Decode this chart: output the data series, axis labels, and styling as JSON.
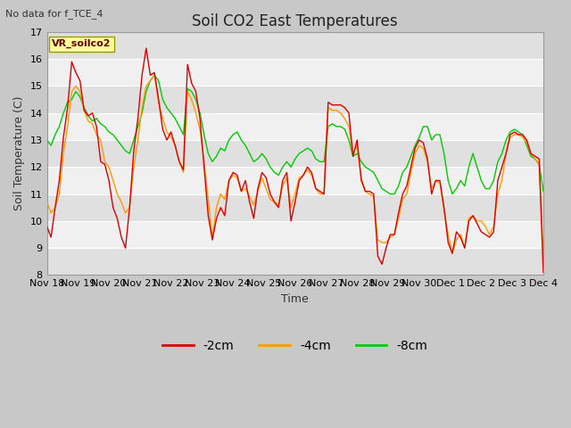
{
  "title": "Soil CO2 East Temperatures",
  "subtitle": "No data for f_TCE_4",
  "ylabel": "Soil Temperature (C)",
  "xlabel": "Time",
  "ylim": [
    8.0,
    17.0
  ],
  "yticks": [
    8.0,
    9.0,
    10.0,
    11.0,
    12.0,
    13.0,
    14.0,
    15.0,
    16.0,
    17.0
  ],
  "fig_bg": "#c8c8c8",
  "plot_bg_light": "#f0f0f0",
  "plot_bg_dark": "#e0e0e0",
  "line_colors": {
    "m2cm": "#dd0000",
    "m4cm": "#ff9900",
    "m8cm": "#00cc00"
  },
  "legend_labels": [
    "-2cm",
    "-4cm",
    "-8cm"
  ],
  "vr_label": "VR_soilco2",
  "vr_box_color": "#ffff99",
  "vr_box_edge": "#999900",
  "n_days": 16,
  "title_fontsize": 12,
  "label_fontsize": 9,
  "tick_fontsize": 8,
  "line_width": 1.0,
  "data_2cm": [
    9.8,
    9.4,
    10.5,
    11.5,
    13.1,
    14.2,
    15.9,
    15.5,
    15.2,
    14.1,
    13.9,
    14.0,
    13.5,
    12.2,
    12.1,
    11.5,
    10.5,
    10.1,
    9.4,
    9.0,
    10.5,
    12.6,
    13.8,
    15.4,
    16.4,
    15.4,
    15.5,
    14.5,
    13.4,
    13.0,
    13.3,
    12.8,
    12.2,
    11.9,
    15.8,
    15.1,
    14.8,
    13.8,
    12.0,
    10.2,
    9.3,
    10.1,
    10.5,
    10.2,
    11.5,
    11.8,
    11.7,
    11.1,
    11.5,
    10.7,
    10.1,
    11.2,
    11.8,
    11.6,
    11.0,
    10.7,
    10.5,
    11.5,
    11.8,
    10.0,
    10.7,
    11.5,
    11.7,
    12.0,
    11.8,
    11.2,
    11.1,
    11.0,
    14.4,
    14.3,
    14.3,
    14.3,
    14.2,
    14.0,
    12.4,
    13.0,
    11.5,
    11.1,
    11.1,
    11.0,
    8.7,
    8.4,
    9.0,
    9.5,
    9.5,
    10.3,
    11.0,
    11.3,
    12.0,
    12.7,
    13.0,
    12.9,
    12.3,
    11.0,
    11.5,
    11.5,
    10.5,
    9.2,
    8.8,
    9.6,
    9.4,
    9.0,
    10.0,
    10.2,
    9.9,
    9.6,
    9.5,
    9.4,
    9.6,
    11.5,
    12.0,
    12.5,
    13.2,
    13.3,
    13.2,
    13.2,
    13.0,
    12.5,
    12.4,
    12.3,
    8.1
  ],
  "data_4cm": [
    10.7,
    10.3,
    10.5,
    11.0,
    12.5,
    13.5,
    14.8,
    15.0,
    14.8,
    14.1,
    13.7,
    13.6,
    13.2,
    13.0,
    12.2,
    12.0,
    11.5,
    11.0,
    10.7,
    10.3,
    10.5,
    12.0,
    13.0,
    14.2,
    15.0,
    15.2,
    15.4,
    14.4,
    13.8,
    13.3,
    13.1,
    12.8,
    12.2,
    11.8,
    14.8,
    14.5,
    14.0,
    13.4,
    12.2,
    10.8,
    9.4,
    10.5,
    11.0,
    10.8,
    11.5,
    11.7,
    11.6,
    11.1,
    11.2,
    10.9,
    10.6,
    11.1,
    11.6,
    11.2,
    10.8,
    10.7,
    10.6,
    11.3,
    11.6,
    10.5,
    11.0,
    11.6,
    11.7,
    11.9,
    11.7,
    11.2,
    11.0,
    11.0,
    14.2,
    14.1,
    14.1,
    14.0,
    13.8,
    13.5,
    12.5,
    12.8,
    11.6,
    11.1,
    11.0,
    10.9,
    9.3,
    9.2,
    9.2,
    9.4,
    9.5,
    10.1,
    10.8,
    11.0,
    11.8,
    12.5,
    12.8,
    12.7,
    12.2,
    11.2,
    11.5,
    11.4,
    10.4,
    9.5,
    8.8,
    9.3,
    9.5,
    9.0,
    10.1,
    10.2,
    10.0,
    10.0,
    9.8,
    9.5,
    9.8,
    11.0,
    11.5,
    12.5,
    13.1,
    13.2,
    13.2,
    13.1,
    12.9,
    12.5,
    12.3,
    12.1,
    8.8
  ],
  "data_8cm": [
    13.0,
    12.8,
    13.2,
    13.5,
    14.0,
    14.4,
    14.5,
    14.8,
    14.6,
    14.2,
    13.9,
    13.7,
    13.8,
    13.6,
    13.5,
    13.3,
    13.2,
    13.0,
    12.8,
    12.6,
    12.5,
    13.0,
    13.5,
    14.0,
    14.8,
    15.2,
    15.4,
    15.2,
    14.5,
    14.2,
    14.0,
    13.8,
    13.5,
    13.2,
    14.9,
    14.8,
    14.5,
    14.0,
    13.2,
    12.5,
    12.2,
    12.4,
    12.7,
    12.6,
    13.0,
    13.2,
    13.3,
    13.0,
    12.8,
    12.5,
    12.2,
    12.3,
    12.5,
    12.3,
    12.0,
    11.8,
    11.7,
    12.0,
    12.2,
    12.0,
    12.3,
    12.5,
    12.6,
    12.7,
    12.6,
    12.3,
    12.2,
    12.2,
    13.5,
    13.6,
    13.5,
    13.5,
    13.4,
    13.0,
    12.4,
    12.5,
    12.2,
    12.0,
    11.9,
    11.8,
    11.5,
    11.2,
    11.1,
    11.0,
    11.0,
    11.3,
    11.8,
    12.0,
    12.4,
    12.8,
    13.1,
    13.5,
    13.5,
    13.0,
    13.2,
    13.2,
    12.5,
    11.5,
    11.0,
    11.2,
    11.5,
    11.3,
    12.0,
    12.5,
    12.0,
    11.5,
    11.2,
    11.2,
    11.5,
    12.2,
    12.5,
    13.0,
    13.3,
    13.4,
    13.3,
    13.2,
    12.8,
    12.4,
    12.3,
    12.1,
    11.1
  ]
}
